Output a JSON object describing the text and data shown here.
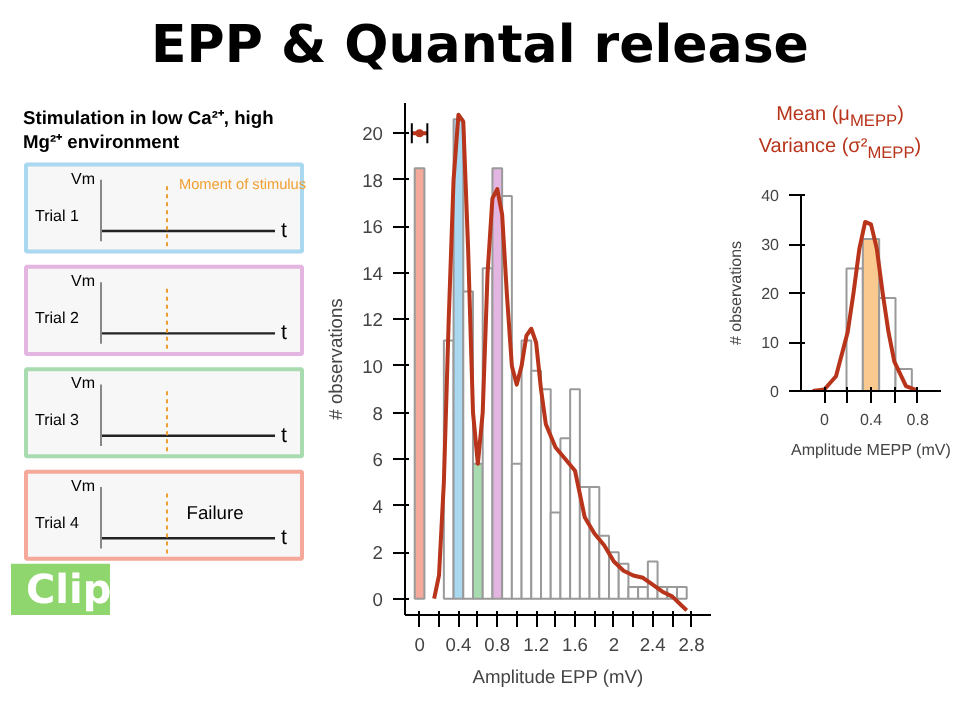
{
  "chart_data": [
    {
      "type": "other",
      "title": "EPP & Quantal release",
      "subtitle": "Stimulation in low Ca²⁺, high Mg²⁺ environment",
      "categories": [
        "Trial 1",
        "Trial 2",
        "Trial 3",
        "Trial 4"
      ],
      "colors": [
        "#a9d8f0",
        "#e2b6e0",
        "#a8dcb0",
        "#f4a99a"
      ],
      "annotations": [
        "Vm",
        "t",
        "Moment of stimulus",
        "Failure",
        "Clip"
      ]
    },
    {
      "type": "histogram",
      "xlabel": "Amplitude EPP (mV)",
      "ylabel": "# observations",
      "xlim": [
        -0.15,
        3.0
      ],
      "ylim": [
        -0.7,
        21.3
      ],
      "xticks": [
        0,
        {
          "value": 0.2,
          "label": null
        },
        0.4,
        {
          "value": 0.6,
          "label": null
        },
        0.8,
        {
          "value": 1.0,
          "label": null
        },
        1.2,
        {
          "value": 1.4,
          "label": null
        },
        1.6,
        {
          "value": 1.8,
          "label": null
        },
        2.0,
        {
          "value": 2.2,
          "label": null
        },
        2.4,
        {
          "value": 2.6,
          "label": null
        },
        2.8
      ],
      "yticks": [
        0,
        2,
        4,
        6,
        8,
        10,
        12,
        14,
        16,
        18,
        20
      ],
      "grid": false,
      "series": [
        {
          "bins": [
            -0.05,
            0.05,
            0.15,
            0.25,
            0.35,
            0.45,
            0.55,
            0.65,
            0.75,
            0.85,
            0.95,
            1.05,
            1.15,
            1.25,
            1.35,
            1.45,
            1.55,
            1.65,
            1.75,
            1.85,
            1.95,
            2.05,
            2.15,
            2.25,
            2.35,
            2.45,
            2.55,
            2.65,
            2.75
          ],
          "values": [
            18.5,
            0,
            0,
            11.1,
            20.6,
            13.2,
            5.8,
            14.2,
            18.5,
            17.3,
            5.8,
            11.1,
            9.8,
            9.0,
            3.7,
            6.9,
            9.0,
            4.8,
            4.8,
            2.7,
            2.0,
            1.5,
            0.5,
            0.5,
            1.6,
            0.5,
            0.5,
            0.5
          ],
          "colors": [
            "#f4a99a",
            "#ffffff",
            "#ffffff",
            "#ffffff",
            "#a9d8f0",
            "#ffffff",
            "#a8dcb0",
            "#ffffff",
            "#e2b6e0",
            "#ffffff",
            "#ffffff",
            "#ffffff",
            "#ffffff",
            "#ffffff",
            "#ffffff",
            "#ffffff",
            "#ffffff",
            "#ffffff",
            "#ffffff",
            "#ffffff",
            "#ffffff",
            "#ffffff",
            "#ffffff",
            "#ffffff",
            "#ffffff",
            "#ffffff",
            "#ffffff",
            "#ffffff"
          ]
        },
        {
          "type": "line",
          "color": "#b8341b",
          "x": [
            0.15,
            0.2,
            0.25,
            0.3,
            0.35,
            0.4,
            0.45,
            0.5,
            0.55,
            0.6,
            0.65,
            0.7,
            0.75,
            0.8,
            0.85,
            0.9,
            0.95,
            1.0,
            1.05,
            1.1,
            1.15,
            1.2,
            1.25,
            1.3,
            1.4,
            1.5,
            1.6,
            1.65,
            1.7,
            1.8,
            1.9,
            2.0,
            2.1,
            2.2,
            2.3,
            2.4,
            2.5,
            2.6,
            2.7,
            2.75
          ],
          "values": [
            0,
            1,
            5,
            12,
            18,
            20.8,
            20.5,
            15,
            8,
            5.8,
            8,
            14,
            17.2,
            17.6,
            16.5,
            13,
            10,
            9.2,
            10,
            11.3,
            11.6,
            11,
            9,
            7.5,
            6.5,
            6,
            5.5,
            4.5,
            3.5,
            2.8,
            2.3,
            1.6,
            1.2,
            1.0,
            0.9,
            0.6,
            0.3,
            0.1,
            -0.3,
            -0.5
          ]
        },
        {
          "type": "scatter",
          "marker": "circle",
          "color": "#b8341b",
          "x": [
            0
          ],
          "values": [
            20
          ],
          "xerrors": [
            0.08
          ]
        }
      ]
    },
    {
      "type": "histogram",
      "xlabel": "Amplitude MEPP (mV)",
      "ylabel": "# observations",
      "xlim": [
        -0.2,
        1.0
      ],
      "ylim": [
        0,
        40
      ],
      "xticks": [
        0,
        {
          "value": 0.2,
          "label": null
        },
        0.4,
        {
          "value": 0.6,
          "label": null
        },
        0.8
      ],
      "yticks": [
        0,
        10,
        20,
        30,
        40
      ],
      "grid": false,
      "annotations": [
        "Mean (μ$_{MEPP}$)",
        "Variance (σ²$_{MEPP}$)"
      ],
      "series": [
        {
          "bins": [
            0.19,
            0.33,
            0.47,
            0.61,
            0.75
          ],
          "values": [
            25,
            31,
            19,
            4.5
          ],
          "colors": [
            "#ffffff",
            "#f9c98f",
            "#ffffff",
            "#ffffff"
          ]
        },
        {
          "type": "line",
          "color": "#b8341b",
          "x": [
            -0.1,
            0.0,
            0.1,
            0.2,
            0.25,
            0.3,
            0.35,
            0.4,
            0.45,
            0.5,
            0.55,
            0.6,
            0.7,
            0.8
          ],
          "values": [
            0,
            0.3,
            3,
            12,
            20,
            29,
            34.5,
            34,
            29,
            20,
            12,
            6,
            1,
            0.1
          ]
        }
      ]
    }
  ]
}
